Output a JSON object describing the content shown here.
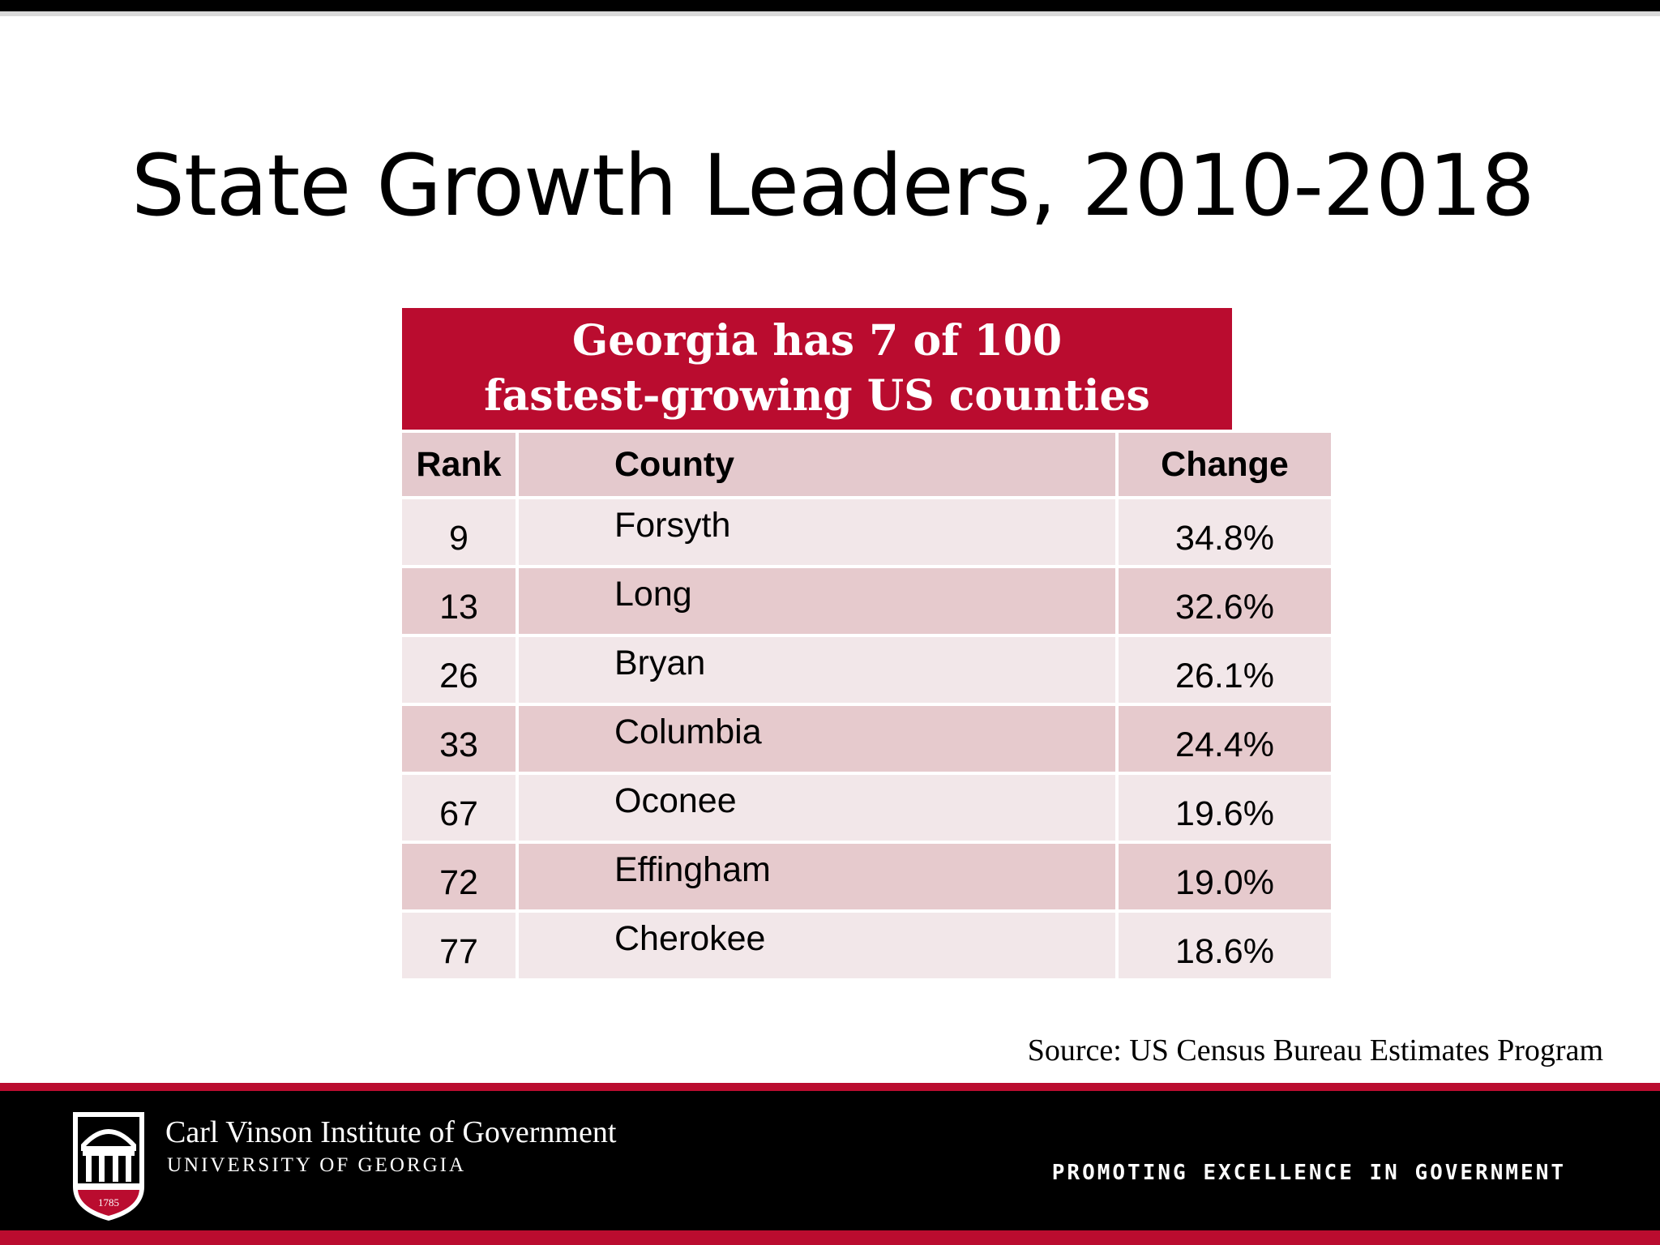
{
  "slide": {
    "title": "State Growth Leaders, 2010-2018"
  },
  "table": {
    "header_line1": "Georgia has 7 of 100",
    "header_line2": "fastest-growing US counties",
    "columns": [
      "Rank",
      "County",
      "Change"
    ],
    "rows": [
      {
        "rank": "9",
        "county": "Forsyth",
        "change": "34.8%"
      },
      {
        "rank": "13",
        "county": "Long",
        "change": "32.6%"
      },
      {
        "rank": "26",
        "county": "Bryan",
        "change": "26.1%"
      },
      {
        "rank": "33",
        "county": "Columbia",
        "change": "24.4%"
      },
      {
        "rank": "67",
        "county": "Oconee",
        "change": "19.6%"
      },
      {
        "rank": "72",
        "county": "Effingham",
        "change": "19.0%"
      },
      {
        "rank": "77",
        "county": "Cherokee",
        "change": "18.6%"
      }
    ]
  },
  "source": "Source: US Census Bureau Estimates Program",
  "footer": {
    "org_name": "Carl Vinson Institute of Government",
    "org_sub": "UNIVERSITY OF GEORGIA",
    "logo_year": "1785",
    "tagline": "PROMOTING EXCELLENCE IN GOVERNMENT",
    "logo_icon": "arch-shield-icon"
  },
  "colors": {
    "brand_red": "#ba0c2f",
    "header_row": "#e4c9cd",
    "row_light": "#f2e7e9",
    "row_dark": "#e6cacd"
  }
}
